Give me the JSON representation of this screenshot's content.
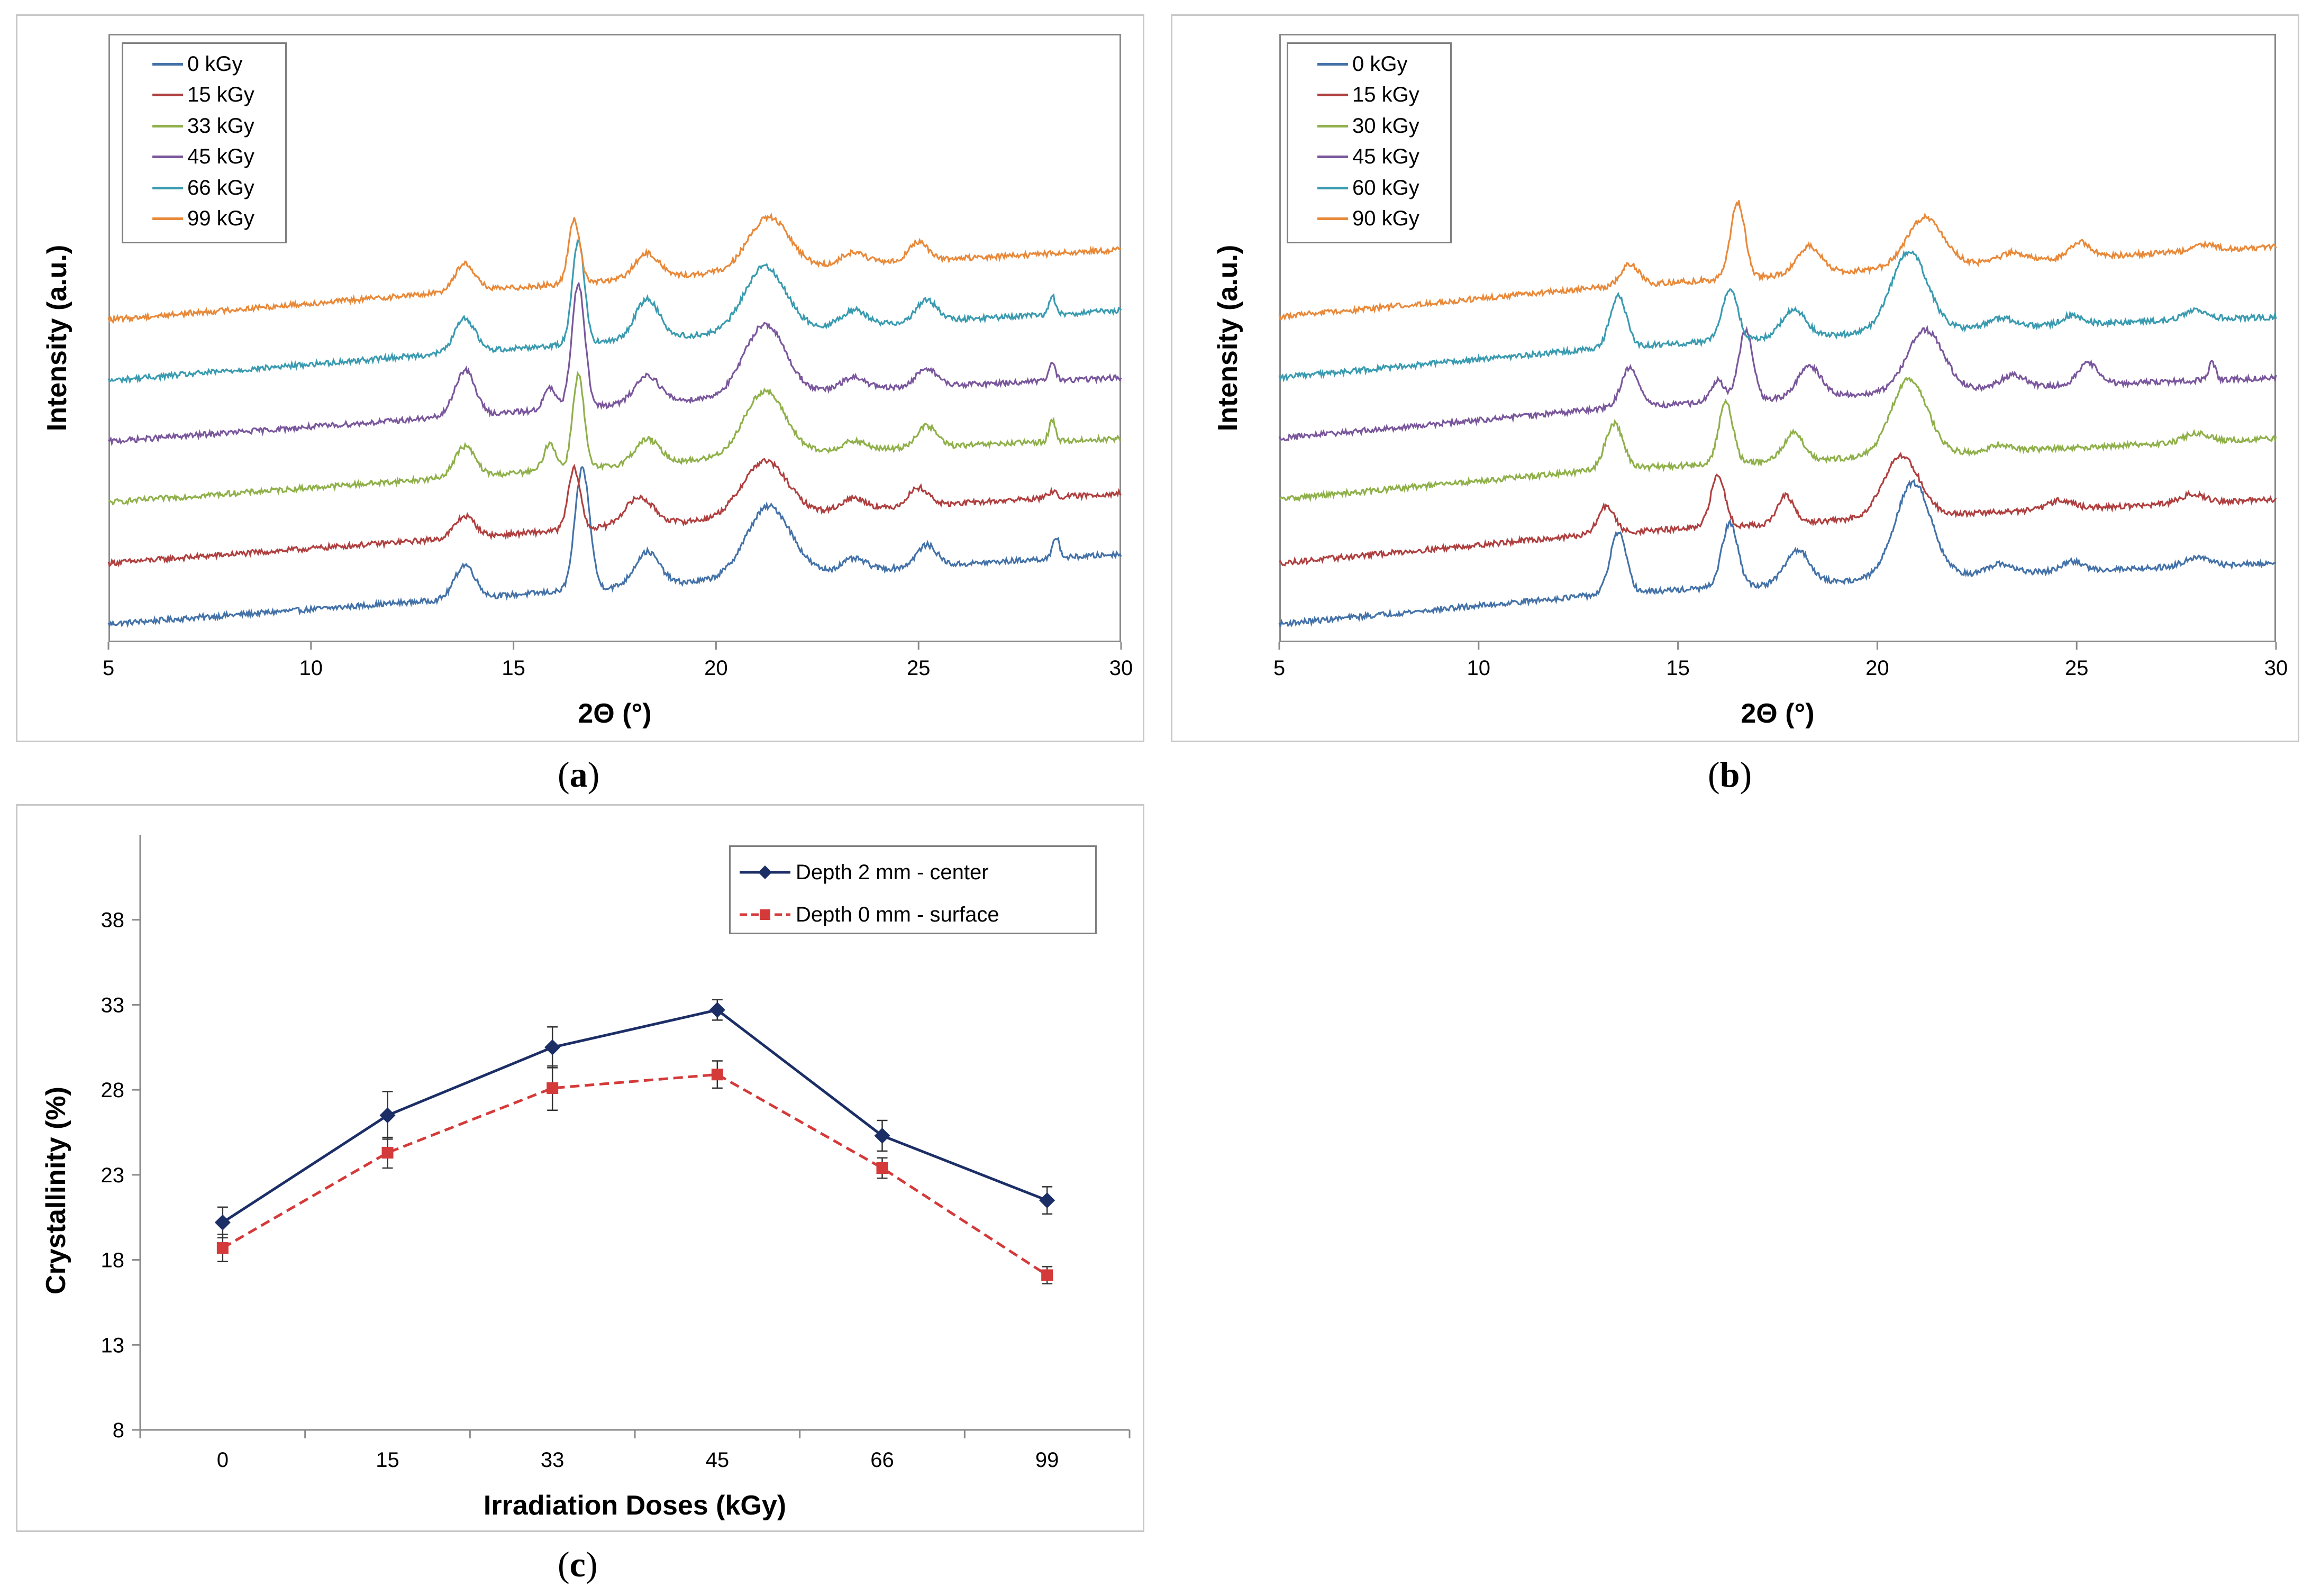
{
  "captions": {
    "a_open": "(",
    "a_letter": "a",
    "a_close": ")",
    "b_open": "(",
    "b_letter": "b",
    "b_close": ")",
    "c_open": "(",
    "c_letter": "c",
    "c_close": ")"
  },
  "chart_data": [
    {
      "id": "a",
      "type": "line",
      "title": "",
      "xlabel": "2Θ (°)",
      "ylabel": "Intensity (a.u.)",
      "xlim": [
        5,
        30
      ],
      "xticks": [
        5,
        10,
        15,
        20,
        25,
        30
      ],
      "ylim": [
        0,
        10
      ],
      "legend_position": "top-left",
      "series": [
        {
          "name": "0 kGy",
          "color": "#4472a8",
          "baseline": [
            0.3,
            0.7,
            1.1,
            1.45
          ],
          "peaks": [
            [
              13.8,
              0.55,
              0.25
            ],
            [
              16.7,
              2.0,
              0.18
            ],
            [
              18.3,
              0.55,
              0.3
            ],
            [
              21.3,
              1.15,
              0.55
            ],
            [
              23.4,
              0.2,
              0.3
            ],
            [
              25.2,
              0.35,
              0.25
            ],
            [
              28.4,
              0.35,
              0.08
            ]
          ]
        },
        {
          "name": "15 kGy",
          "color": "#b04040",
          "baseline": [
            1.3,
            1.7,
            2.1,
            2.45
          ],
          "peaks": [
            [
              13.8,
              0.35,
              0.25
            ],
            [
              16.5,
              1.0,
              0.15
            ],
            [
              18.1,
              0.45,
              0.35
            ],
            [
              21.2,
              0.9,
              0.55
            ],
            [
              23.4,
              0.2,
              0.3
            ],
            [
              25.0,
              0.3,
              0.25
            ],
            [
              28.3,
              0.1,
              0.1
            ]
          ]
        },
        {
          "name": "33 kGy",
          "color": "#8fb04a",
          "baseline": [
            2.3,
            2.7,
            3.1,
            3.35
          ],
          "peaks": [
            [
              13.8,
              0.5,
              0.25
            ],
            [
              15.9,
              0.45,
              0.15
            ],
            [
              16.6,
              1.55,
              0.14
            ],
            [
              18.3,
              0.4,
              0.3
            ],
            [
              21.2,
              1.05,
              0.5
            ],
            [
              23.4,
              0.15,
              0.3
            ],
            [
              25.2,
              0.35,
              0.25
            ],
            [
              28.3,
              0.35,
              0.08
            ]
          ]
        },
        {
          "name": "45 kGy",
          "color": "#7a579c",
          "baseline": [
            3.3,
            3.7,
            4.1,
            4.35
          ],
          "peaks": [
            [
              13.8,
              0.75,
              0.25
            ],
            [
              15.9,
              0.35,
              0.15
            ],
            [
              16.6,
              2.05,
              0.16
            ],
            [
              18.3,
              0.45,
              0.3
            ],
            [
              21.2,
              1.15,
              0.5
            ],
            [
              23.4,
              0.2,
              0.3
            ],
            [
              25.2,
              0.3,
              0.25
            ],
            [
              28.3,
              0.3,
              0.08
            ]
          ]
        },
        {
          "name": "66 kGy",
          "color": "#3a9bb0",
          "baseline": [
            4.3,
            4.75,
            5.15,
            5.45
          ],
          "peaks": [
            [
              13.8,
              0.55,
              0.25
            ],
            [
              16.6,
              1.7,
              0.15
            ],
            [
              18.3,
              0.65,
              0.3
            ],
            [
              21.2,
              1.05,
              0.5
            ],
            [
              23.4,
              0.25,
              0.3
            ],
            [
              25.2,
              0.35,
              0.25
            ],
            [
              28.3,
              0.3,
              0.08
            ]
          ]
        },
        {
          "name": "99 kGy",
          "color": "#e8893a",
          "baseline": [
            5.3,
            5.75,
            6.15,
            6.45
          ],
          "peaks": [
            [
              13.8,
              0.45,
              0.25
            ],
            [
              16.5,
              1.05,
              0.14
            ],
            [
              18.3,
              0.4,
              0.3
            ],
            [
              21.3,
              0.85,
              0.5
            ],
            [
              23.4,
              0.2,
              0.3
            ],
            [
              25.0,
              0.3,
              0.25
            ]
          ]
        }
      ]
    },
    {
      "id": "b",
      "type": "line",
      "title": "",
      "xlabel": "2Θ (°)",
      "ylabel": "Intensity (a.u.)",
      "xlim": [
        5,
        30
      ],
      "xticks": [
        5,
        10,
        15,
        20,
        25,
        30
      ],
      "ylim": [
        0,
        10
      ],
      "legend_position": "top-left",
      "series": [
        {
          "name": "0 kGy",
          "color": "#4472a8",
          "baseline": [
            0.3,
            0.8,
            1.1,
            1.3
          ],
          "peaks": [
            [
              13.5,
              1.0,
              0.2
            ],
            [
              16.3,
              1.05,
              0.2
            ],
            [
              18.0,
              0.55,
              0.3
            ],
            [
              20.9,
              1.55,
              0.45
            ],
            [
              23.1,
              0.15,
              0.3
            ],
            [
              24.9,
              0.15,
              0.25
            ],
            [
              28.0,
              0.15,
              0.3
            ]
          ]
        },
        {
          "name": "15 kGy",
          "color": "#b04040",
          "baseline": [
            1.3,
            1.8,
            2.1,
            2.35
          ],
          "peaks": [
            [
              13.2,
              0.45,
              0.2
            ],
            [
              16.0,
              0.85,
              0.18
            ],
            [
              17.7,
              0.45,
              0.2
            ],
            [
              20.6,
              1.0,
              0.45
            ],
            [
              24.6,
              0.15,
              0.3
            ],
            [
              27.9,
              0.15,
              0.3
            ]
          ]
        },
        {
          "name": "30 kGy",
          "color": "#8fb04a",
          "baseline": [
            2.35,
            2.85,
            3.1,
            3.35
          ],
          "peaks": [
            [
              13.4,
              0.75,
              0.22
            ],
            [
              16.2,
              1.0,
              0.18
            ],
            [
              17.9,
              0.45,
              0.25
            ],
            [
              20.8,
              1.25,
              0.45
            ],
            [
              23.1,
              0.1,
              0.3
            ],
            [
              28.0,
              0.15,
              0.3
            ]
          ]
        },
        {
          "name": "45 kGy",
          "color": "#7a579c",
          "baseline": [
            3.35,
            3.85,
            4.15,
            4.35
          ],
          "peaks": [
            [
              13.8,
              0.65,
              0.22
            ],
            [
              16.0,
              0.35,
              0.18
            ],
            [
              16.7,
              1.15,
              0.18
            ],
            [
              18.3,
              0.5,
              0.3
            ],
            [
              21.2,
              1.0,
              0.45
            ],
            [
              23.4,
              0.2,
              0.3
            ],
            [
              25.3,
              0.35,
              0.25
            ],
            [
              28.4,
              0.3,
              0.08
            ]
          ]
        },
        {
          "name": "60 kGy",
          "color": "#3a9bb0",
          "baseline": [
            4.35,
            4.85,
            5.15,
            5.35
          ],
          "peaks": [
            [
              13.5,
              0.85,
              0.2
            ],
            [
              16.3,
              0.85,
              0.2
            ],
            [
              17.9,
              0.45,
              0.3
            ],
            [
              20.8,
              1.3,
              0.45
            ],
            [
              23.1,
              0.15,
              0.3
            ],
            [
              24.9,
              0.15,
              0.25
            ],
            [
              28.0,
              0.15,
              0.3
            ]
          ]
        },
        {
          "name": "90 kGy",
          "color": "#e8893a",
          "baseline": [
            5.35,
            5.85,
            6.2,
            6.5
          ],
          "peaks": [
            [
              13.8,
              0.35,
              0.22
            ],
            [
              16.5,
              1.25,
              0.18
            ],
            [
              18.3,
              0.45,
              0.3
            ],
            [
              21.2,
              0.8,
              0.45
            ],
            [
              23.4,
              0.15,
              0.3
            ],
            [
              25.1,
              0.25,
              0.25
            ],
            [
              28.2,
              0.1,
              0.3
            ]
          ]
        }
      ]
    },
    {
      "id": "c",
      "type": "line",
      "title": "",
      "xlabel": "Irradiation Doses (kGy)",
      "ylabel": "Crystallinity (%)",
      "categories": [
        "0",
        "15",
        "33",
        "45",
        "66",
        "99"
      ],
      "ylim": [
        8,
        43
      ],
      "yticks": [
        8,
        13,
        18,
        23,
        28,
        33,
        38
      ],
      "legend_position": "top-right",
      "series": [
        {
          "name": "Depth 2 mm - center",
          "color": "#1c2e66",
          "marker": "diamond",
          "dash": "solid",
          "values": [
            20.2,
            26.5,
            30.5,
            32.7,
            25.3,
            21.5
          ],
          "errors": [
            0.9,
            1.4,
            1.2,
            0.6,
            0.9,
            0.8
          ]
        },
        {
          "name": "Depth 0 mm - surface",
          "color": "#d43a3a",
          "marker": "square",
          "dash": "dashed",
          "values": [
            18.7,
            24.3,
            28.1,
            28.9,
            23.4,
            17.1
          ],
          "errors": [
            0.8,
            0.9,
            1.3,
            0.8,
            0.6,
            0.5
          ]
        }
      ]
    }
  ]
}
